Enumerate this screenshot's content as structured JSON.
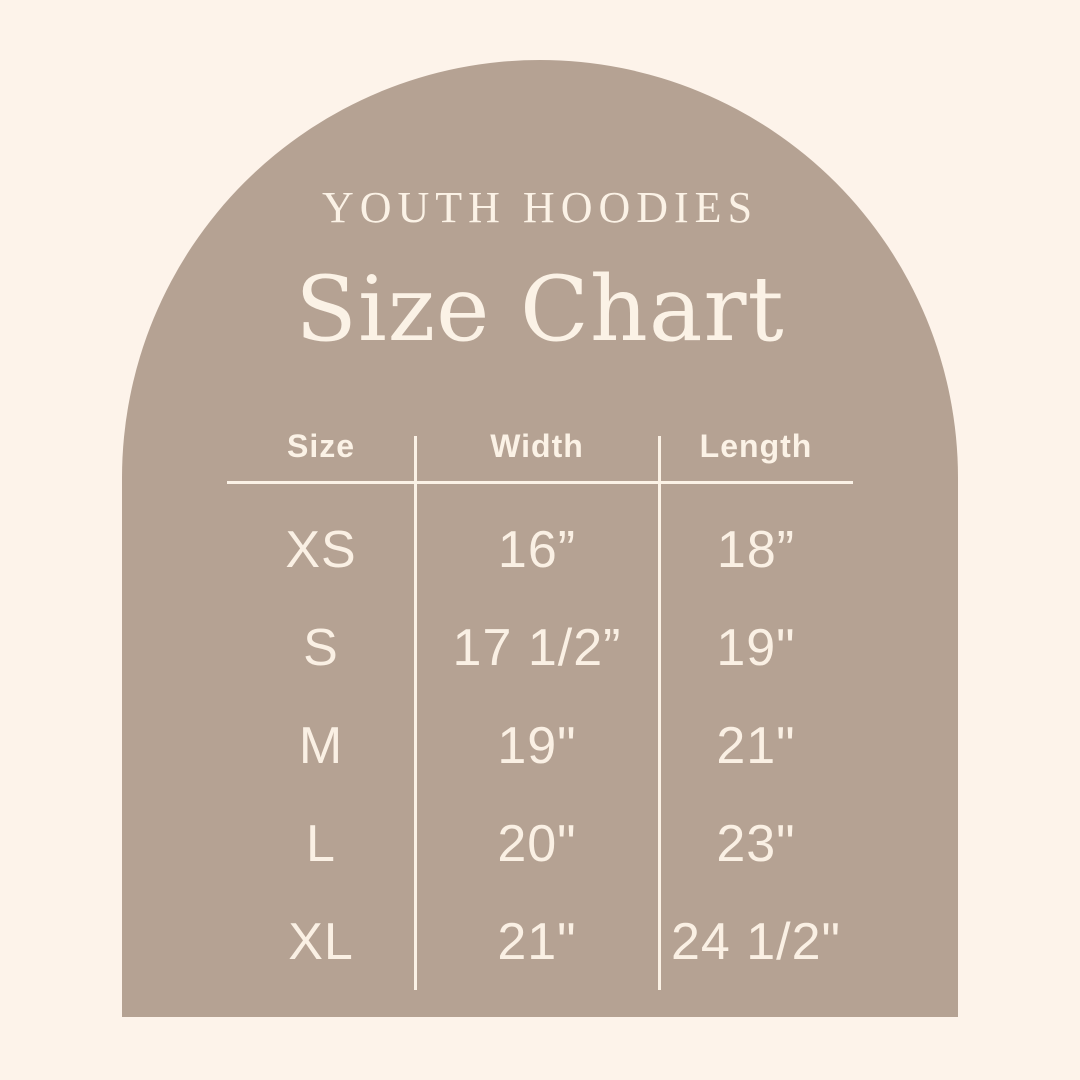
{
  "style": {
    "background_color": "#fdf3ea",
    "arch_color": "#b5a293",
    "text_color": "#fbf2e6"
  },
  "header": {
    "eyebrow": "YOUTH HOODIES",
    "title": "Size Chart"
  },
  "chart_data": {
    "type": "table",
    "title": "Size Chart",
    "subtitle": "YOUTH HOODIES",
    "columns": [
      "Size",
      "Width",
      "Length"
    ],
    "rows": [
      {
        "size": "XS",
        "width": "16”",
        "length": "18”"
      },
      {
        "size": "S",
        "width": "17 1/2”",
        "length": "19\""
      },
      {
        "size": "M",
        "width": "19\"",
        "length": "21\""
      },
      {
        "size": "L",
        "width": "20\"",
        "length": "23\""
      },
      {
        "size": "XL",
        "width": "21\"",
        "length": "24 1/2\""
      }
    ],
    "units": "inches",
    "layout": "arch panel centered on cream background, white column dividers and header underline"
  }
}
